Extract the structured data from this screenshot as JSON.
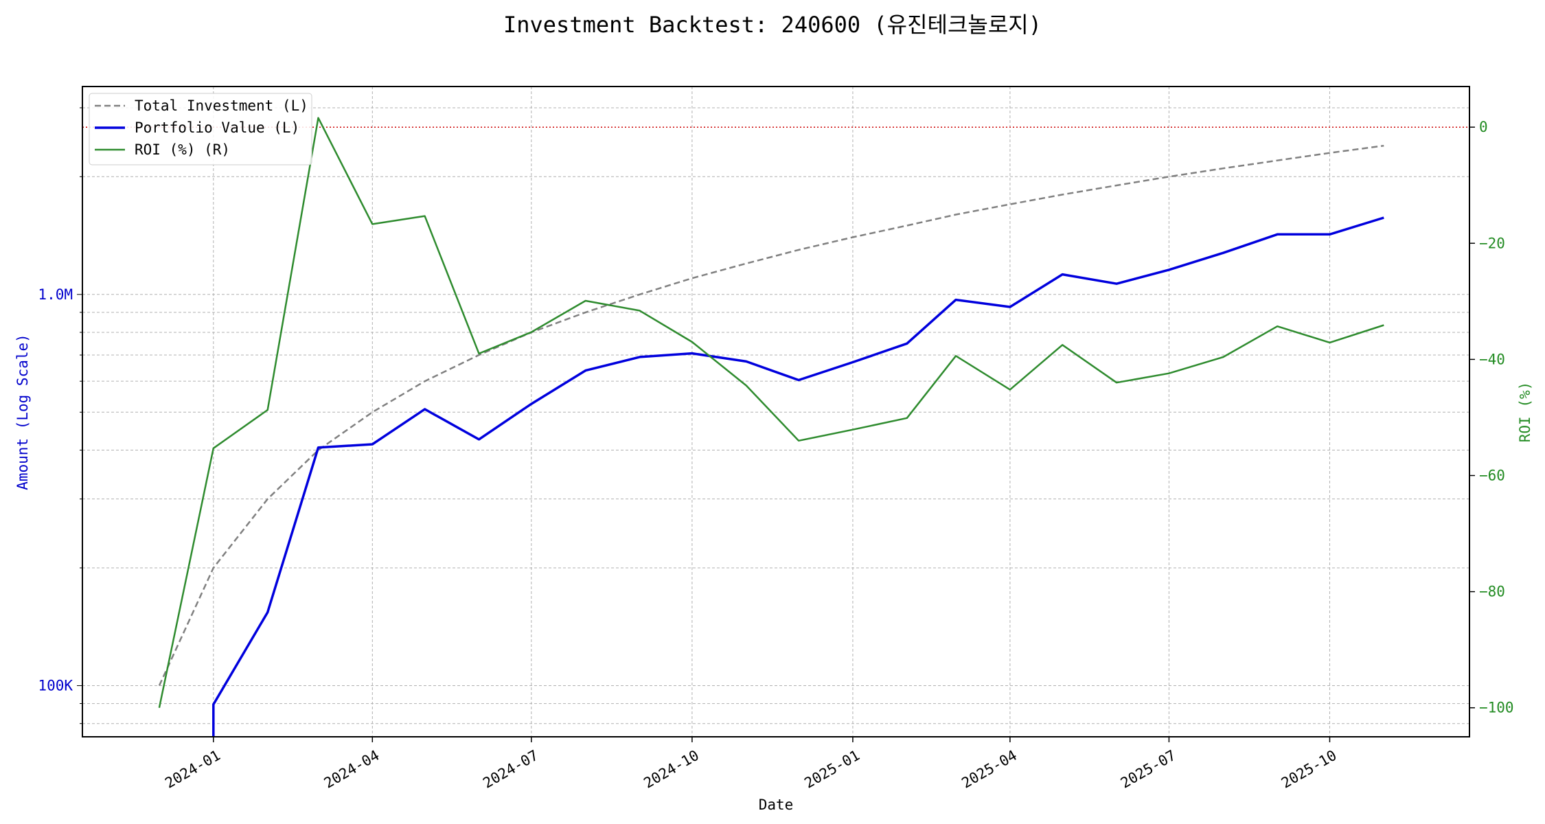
{
  "chart_data": {
    "type": "line",
    "title": "Investment Backtest: 240600 (유진테크놀로지)",
    "xlabel": "Date",
    "ylabel_left": "Amount (Log Scale)",
    "ylabel_right": "ROI (%)",
    "y_left_scale": "log",
    "y_left_range": [
      74000,
      3400000
    ],
    "y_left_ticks": [
      {
        "value": 100000,
        "label": "100K"
      },
      {
        "value": 1000000,
        "label": "1.0M"
      }
    ],
    "y_right_range": [
      -105,
      7
    ],
    "y_right_ticks": [
      {
        "value": 0,
        "label": "0"
      },
      {
        "value": -20,
        "label": "−20"
      },
      {
        "value": -40,
        "label": "−40"
      },
      {
        "value": -60,
        "label": "−60"
      },
      {
        "value": -80,
        "label": "−80"
      },
      {
        "value": -100,
        "label": "−100"
      }
    ],
    "x_range": [
      "2023-10-18",
      "2025-12-20"
    ],
    "x_ticks": [
      {
        "value": "2024-01-01",
        "label": "2024-01"
      },
      {
        "value": "2024-04-01",
        "label": "2024-04"
      },
      {
        "value": "2024-07-01",
        "label": "2024-07"
      },
      {
        "value": "2024-10-01",
        "label": "2024-10"
      },
      {
        "value": "2025-01-01",
        "label": "2025-01"
      },
      {
        "value": "2025-04-01",
        "label": "2025-04"
      },
      {
        "value": "2025-07-01",
        "label": "2025-07"
      },
      {
        "value": "2025-10-01",
        "label": "2025-10"
      }
    ],
    "x": [
      "2023-12-01",
      "2024-01-01",
      "2024-02-01",
      "2024-03-01",
      "2024-04-01",
      "2024-05-01",
      "2024-06-01",
      "2024-07-01",
      "2024-08-01",
      "2024-09-01",
      "2024-10-01",
      "2024-11-01",
      "2024-12-01",
      "2025-01-01",
      "2025-02-01",
      "2025-03-01",
      "2025-04-01",
      "2025-05-01",
      "2025-06-01",
      "2025-07-01",
      "2025-08-01",
      "2025-09-01",
      "2025-10-01",
      "2025-11-01"
    ],
    "series": [
      {
        "name": "Total Investment (L)",
        "axis": "left",
        "color": "#808080",
        "style": "dashed",
        "values": [
          100000,
          200000,
          300000,
          400000,
          500000,
          600000,
          700000,
          800000,
          900000,
          1000000,
          1100000,
          1200000,
          1300000,
          1400000,
          1500000,
          1600000,
          1700000,
          1800000,
          1900000,
          2000000,
          2100000,
          2200000,
          2300000,
          2400000
        ]
      },
      {
        "name": "Portfolio Value (L)",
        "axis": "left",
        "color": "#0000dd",
        "style": "solid",
        "values": [
          null,
          89500,
          154000,
          406000,
          414000,
          509000,
          426000,
          525000,
          639000,
          692000,
          707000,
          674000,
          604000,
          671000,
          749000,
          969000,
          929000,
          1125000,
          1065000,
          1156000,
          1277000,
          1424000,
          1424000,
          1571000
        ]
      },
      {
        "name": "ROI (%) (R)",
        "axis": "right",
        "color": "#2e8b2e",
        "style": "solid",
        "values": [
          -100,
          -55.3,
          -48.7,
          1.6,
          -16.7,
          -15.3,
          -39.0,
          -35.3,
          -29.9,
          -31.6,
          -37.0,
          -44.5,
          -54.0,
          -52.1,
          -50.1,
          -39.4,
          -45.2,
          -37.5,
          -44.0,
          -42.4,
          -39.6,
          -34.3,
          -37.1,
          -34.1
        ]
      }
    ],
    "reference_line": {
      "axis": "right",
      "value": 0,
      "color": "#cc0000",
      "style": "dotted"
    },
    "grid": true,
    "legend": "top-left"
  }
}
